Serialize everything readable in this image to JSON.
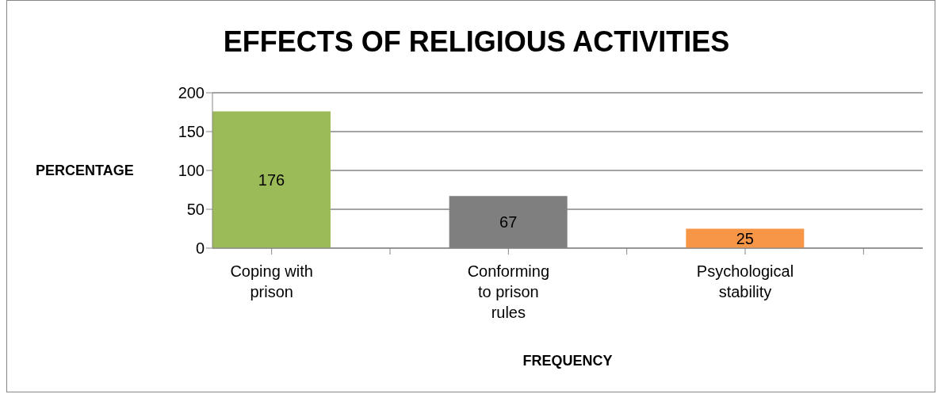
{
  "chart_data": {
    "type": "bar",
    "title": "EFFECTS OF RELIGIOUS ACTIVITIES",
    "xlabel": "FREQUENCY",
    "ylabel": "PERCENTAGE",
    "categories": [
      "Coping with prison",
      null,
      "Conforming to prison rules",
      null,
      "Psychological stability",
      null
    ],
    "values": [
      176,
      null,
      67,
      null,
      25,
      null
    ],
    "colors": [
      "#9bbb59",
      null,
      "#7f7f7f",
      null,
      "#f79646",
      null
    ],
    "ylim": [
      0,
      200
    ],
    "yticks": [
      0,
      50,
      100,
      150,
      200
    ],
    "grid": "y",
    "data_labels": true
  }
}
